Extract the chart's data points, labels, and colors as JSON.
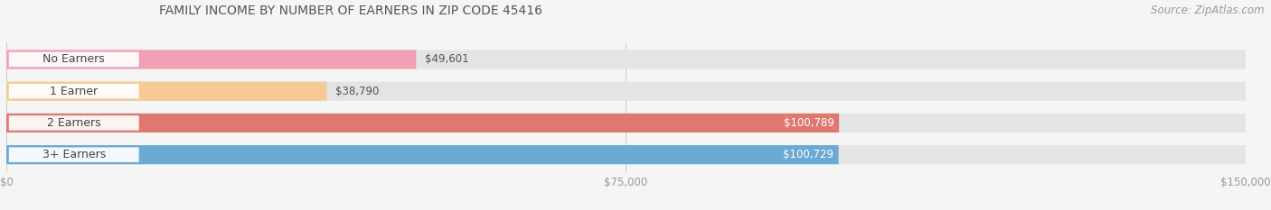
{
  "title": "FAMILY INCOME BY NUMBER OF EARNERS IN ZIP CODE 45416",
  "source": "Source: ZipAtlas.com",
  "categories": [
    "No Earners",
    "1 Earner",
    "2 Earners",
    "3+ Earners"
  ],
  "values": [
    49601,
    38790,
    100789,
    100729
  ],
  "bar_colors": [
    "#F2A0B4",
    "#F5CA94",
    "#E07870",
    "#6AAAD4"
  ],
  "label_colors": [
    "#555555",
    "#555555",
    "#ffffff",
    "#ffffff"
  ],
  "value_labels": [
    "$49,601",
    "$38,790",
    "$100,789",
    "$100,729"
  ],
  "x_ticks": [
    0,
    75000,
    150000
  ],
  "x_tick_labels": [
    "$0",
    "$75,000",
    "$150,000"
  ],
  "xlim": [
    0,
    150000
  ],
  "background_color": "#f5f5f5",
  "bar_background_color": "#e4e4e4",
  "title_fontsize": 10,
  "source_fontsize": 8.5,
  "label_fontsize": 9,
  "value_fontsize": 8.5
}
